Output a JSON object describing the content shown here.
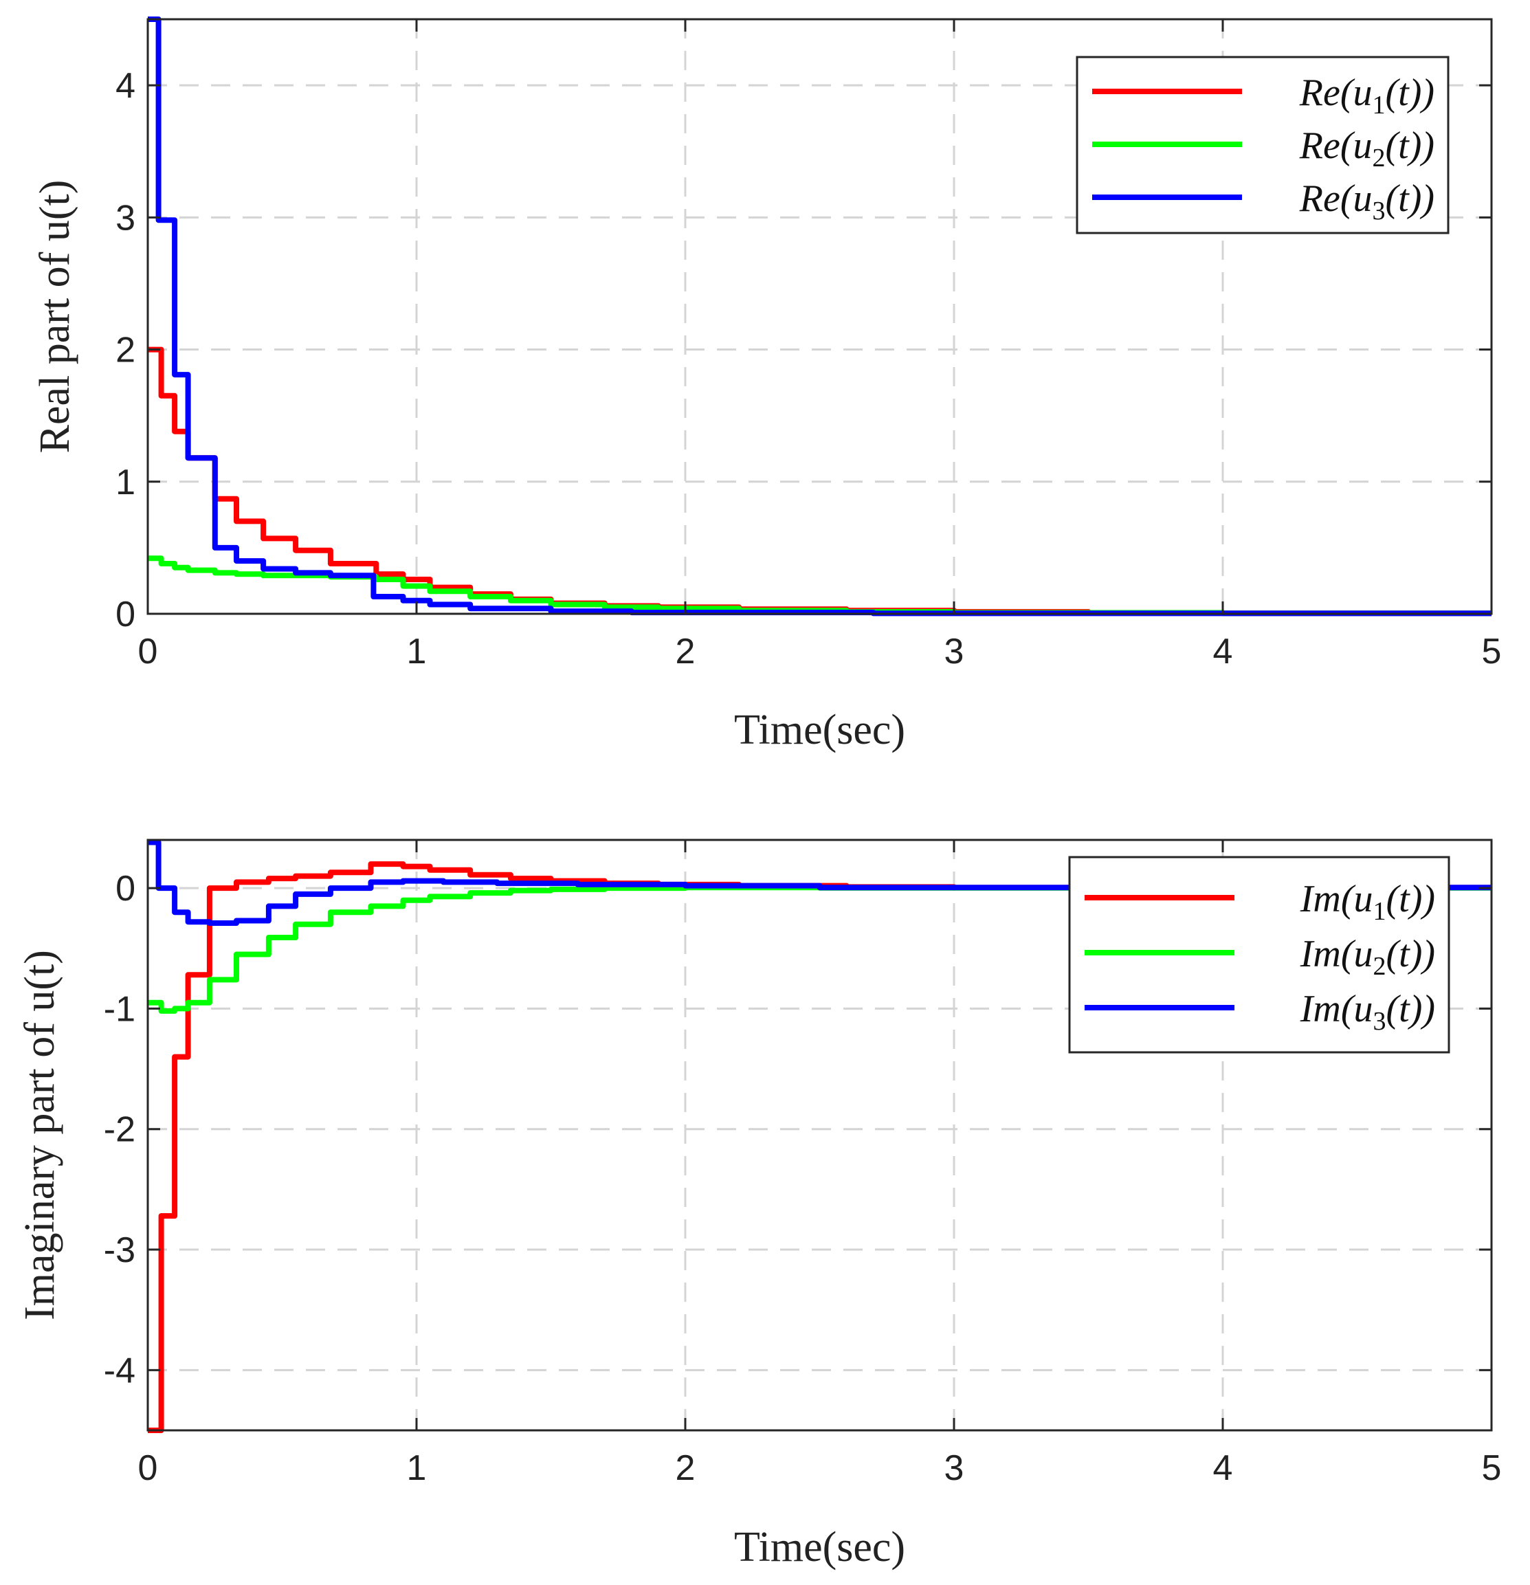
{
  "chart_data": [
    {
      "type": "line",
      "title": "",
      "xlabel": "Time(sec)",
      "ylabel": "Real part of u(t)",
      "xlim": [
        0,
        5
      ],
      "ylim": [
        0,
        4.5
      ],
      "xticks": [
        0,
        1,
        2,
        3,
        4,
        5
      ],
      "xtick_labels": [
        "0",
        "1",
        "2",
        "3",
        "4",
        "5"
      ],
      "yticks": [
        0,
        1,
        2,
        3,
        4
      ],
      "ytick_labels": [
        "0",
        "1",
        "2",
        "3",
        "4"
      ],
      "grid": true,
      "legend_position": "top-right",
      "series": [
        {
          "name": "Re(u1(t))",
          "legend": {
            "prefix": "Re",
            "sub": "1"
          },
          "color": "#ff0000",
          "x": [
            0.0,
            0.05,
            0.05,
            0.1,
            0.1,
            0.15,
            0.15,
            0.25,
            0.25,
            0.33,
            0.33,
            0.43,
            0.43,
            0.55,
            0.55,
            0.68,
            0.68,
            0.85,
            0.85,
            0.95,
            0.95,
            1.05,
            1.05,
            1.2,
            1.2,
            1.35,
            1.35,
            1.5,
            1.5,
            1.7,
            1.7,
            1.9,
            1.9,
            2.2,
            2.2,
            2.6,
            2.6,
            3.0,
            3.0,
            3.5,
            3.5,
            4.0,
            4.0,
            5.0
          ],
          "y": [
            2.0,
            2.0,
            1.65,
            1.65,
            1.38,
            1.38,
            1.18,
            1.18,
            0.87,
            0.87,
            0.7,
            0.7,
            0.57,
            0.57,
            0.48,
            0.48,
            0.38,
            0.38,
            0.3,
            0.3,
            0.26,
            0.26,
            0.2,
            0.2,
            0.15,
            0.15,
            0.11,
            0.11,
            0.08,
            0.08,
            0.06,
            0.06,
            0.05,
            0.05,
            0.035,
            0.035,
            0.025,
            0.025,
            0.015,
            0.015,
            0.008,
            0.008,
            0.004,
            0.004
          ]
        },
        {
          "name": "Re(u2(t))",
          "legend": {
            "prefix": "Re",
            "sub": "2"
          },
          "color": "#00ff00",
          "x": [
            0.0,
            0.05,
            0.05,
            0.1,
            0.1,
            0.15,
            0.15,
            0.25,
            0.25,
            0.33,
            0.33,
            0.43,
            0.43,
            0.55,
            0.55,
            0.68,
            0.68,
            0.85,
            0.85,
            0.95,
            0.95,
            1.05,
            1.05,
            1.2,
            1.2,
            1.35,
            1.35,
            1.5,
            1.5,
            1.7,
            1.7,
            1.9,
            1.9,
            2.2,
            2.2,
            2.6,
            2.6,
            3.0,
            3.0,
            4.0,
            4.0,
            5.0
          ],
          "y": [
            0.42,
            0.42,
            0.38,
            0.38,
            0.35,
            0.35,
            0.33,
            0.33,
            0.31,
            0.31,
            0.3,
            0.3,
            0.29,
            0.29,
            0.29,
            0.29,
            0.28,
            0.28,
            0.26,
            0.26,
            0.21,
            0.21,
            0.17,
            0.17,
            0.13,
            0.13,
            0.1,
            0.1,
            0.07,
            0.07,
            0.05,
            0.05,
            0.04,
            0.04,
            0.025,
            0.025,
            0.015,
            0.015,
            0.008,
            0.008,
            0.004,
            0.004
          ]
        },
        {
          "name": "Re(u3(t))",
          "legend": {
            "prefix": "Re",
            "sub": "3"
          },
          "color": "#0000ff",
          "x": [
            0.0,
            0.04,
            0.04,
            0.1,
            0.1,
            0.15,
            0.15,
            0.25,
            0.25,
            0.33,
            0.33,
            0.43,
            0.43,
            0.55,
            0.55,
            0.68,
            0.68,
            0.84,
            0.84,
            0.95,
            0.95,
            1.05,
            1.05,
            1.2,
            1.2,
            1.5,
            1.5,
            1.8,
            1.8,
            2.7,
            2.7,
            5.0
          ],
          "y": [
            4.5,
            4.5,
            2.98,
            2.98,
            1.81,
            1.81,
            1.18,
            1.18,
            0.5,
            0.5,
            0.4,
            0.4,
            0.34,
            0.34,
            0.31,
            0.31,
            0.29,
            0.29,
            0.13,
            0.13,
            0.1,
            0.1,
            0.07,
            0.07,
            0.04,
            0.04,
            0.02,
            0.02,
            0.01,
            0.01,
            0.003,
            0.003
          ]
        }
      ]
    },
    {
      "type": "line",
      "title": "",
      "xlabel": "Time(sec)",
      "ylabel": "Imaginary part of u(t)",
      "xlim": [
        0,
        5
      ],
      "ylim": [
        -4.5,
        0.4
      ],
      "xticks": [
        0,
        1,
        2,
        3,
        4,
        5
      ],
      "xtick_labels": [
        "0",
        "1",
        "2",
        "3",
        "4",
        "5"
      ],
      "yticks": [
        0,
        -1,
        -2,
        -3,
        -4
      ],
      "ytick_labels": [
        "0",
        "-1",
        "-2",
        "-3",
        "-4"
      ],
      "grid": true,
      "legend_position": "top-right",
      "series": [
        {
          "name": "Im(u1(t))",
          "legend": {
            "prefix": "Im",
            "sub": "1"
          },
          "color": "#ff0000",
          "x": [
            0.0,
            0.05,
            0.05,
            0.1,
            0.1,
            0.15,
            0.15,
            0.23,
            0.23,
            0.33,
            0.33,
            0.45,
            0.45,
            0.55,
            0.55,
            0.68,
            0.68,
            0.83,
            0.83,
            0.95,
            0.95,
            1.05,
            1.05,
            1.2,
            1.2,
            1.35,
            1.35,
            1.5,
            1.5,
            1.7,
            1.7,
            1.9,
            1.9,
            2.2,
            2.2,
            2.6,
            2.6,
            3.0,
            3.0,
            5.0
          ],
          "y": [
            -4.5,
            -4.5,
            -2.72,
            -2.72,
            -1.4,
            -1.4,
            -0.72,
            -0.72,
            0.0,
            0.0,
            0.05,
            0.05,
            0.08,
            0.08,
            0.1,
            0.1,
            0.13,
            0.13,
            0.2,
            0.2,
            0.18,
            0.18,
            0.15,
            0.15,
            0.11,
            0.11,
            0.08,
            0.08,
            0.06,
            0.06,
            0.04,
            0.04,
            0.03,
            0.03,
            0.02,
            0.02,
            0.01,
            0.01,
            0.004,
            0.004
          ]
        },
        {
          "name": "Im(u2(t))",
          "legend": {
            "prefix": "Im",
            "sub": "2"
          },
          "color": "#00ff00",
          "x": [
            0.0,
            0.05,
            0.05,
            0.1,
            0.1,
            0.15,
            0.15,
            0.23,
            0.23,
            0.33,
            0.33,
            0.45,
            0.45,
            0.55,
            0.55,
            0.68,
            0.68,
            0.83,
            0.83,
            0.95,
            0.95,
            1.05,
            1.05,
            1.2,
            1.2,
            1.35,
            1.35,
            1.5,
            1.5,
            1.7,
            1.7,
            2.0,
            2.0,
            2.5,
            2.5,
            5.0
          ],
          "y": [
            -0.95,
            -0.95,
            -1.02,
            -1.02,
            -1.0,
            -1.0,
            -0.95,
            -0.95,
            -0.76,
            -0.76,
            -0.55,
            -0.55,
            -0.41,
            -0.41,
            -0.3,
            -0.3,
            -0.2,
            -0.2,
            -0.15,
            -0.15,
            -0.1,
            -0.1,
            -0.07,
            -0.07,
            -0.04,
            -0.04,
            -0.02,
            -0.02,
            -0.01,
            -0.01,
            0.0,
            0.0,
            0.005,
            0.005,
            0.002,
            0.002
          ]
        },
        {
          "name": "Im(u3(t))",
          "legend": {
            "prefix": "Im",
            "sub": "3"
          },
          "color": "#0000ff",
          "x": [
            0.0,
            0.04,
            0.04,
            0.1,
            0.1,
            0.15,
            0.15,
            0.23,
            0.23,
            0.33,
            0.33,
            0.45,
            0.45,
            0.55,
            0.55,
            0.68,
            0.68,
            0.83,
            0.83,
            0.95,
            0.95,
            1.1,
            1.1,
            1.3,
            1.3,
            1.6,
            1.6,
            2.0,
            2.0,
            2.5,
            2.5,
            5.0
          ],
          "y": [
            0.38,
            0.38,
            0.0,
            0.0,
            -0.2,
            -0.2,
            -0.28,
            -0.28,
            -0.29,
            -0.29,
            -0.27,
            -0.27,
            -0.15,
            -0.15,
            -0.05,
            -0.05,
            0.0,
            0.0,
            0.05,
            0.05,
            0.06,
            0.06,
            0.05,
            0.05,
            0.04,
            0.04,
            0.03,
            0.03,
            0.02,
            0.02,
            0.005,
            0.005
          ]
        }
      ]
    }
  ]
}
